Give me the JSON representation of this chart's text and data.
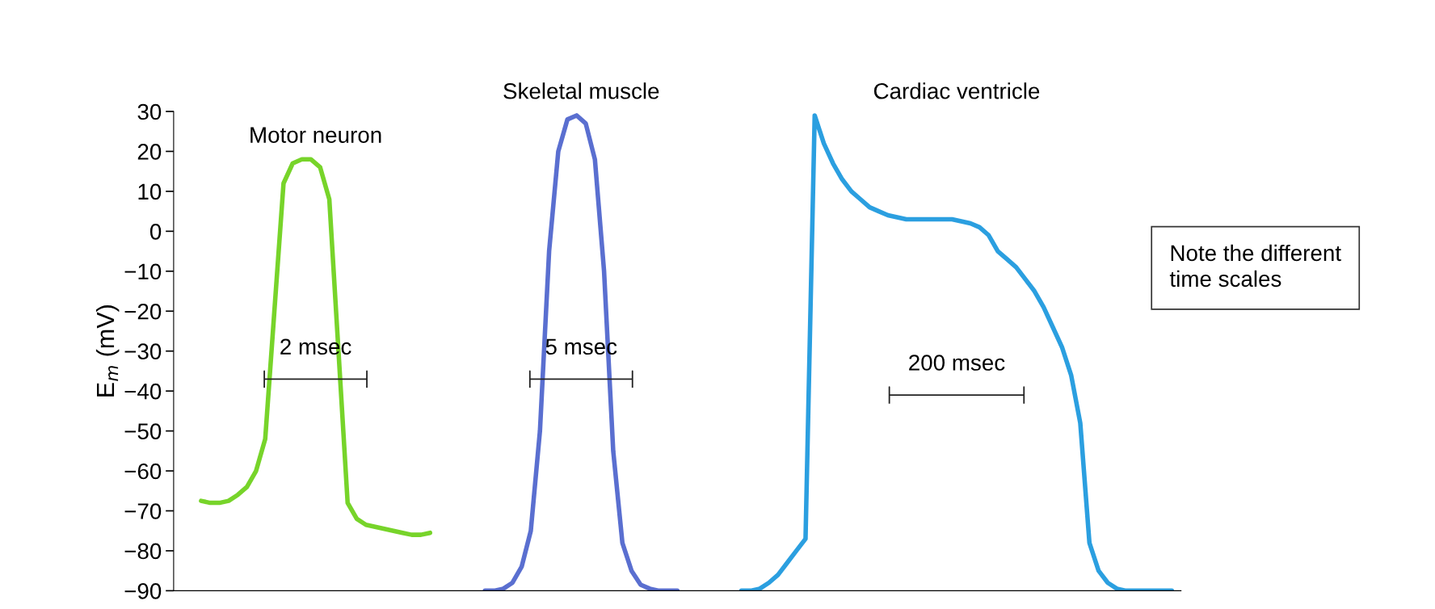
{
  "chart_data": {
    "type": "line",
    "ylabel": "E$_{m}$ (mV)",
    "ylim": [
      -90,
      30
    ],
    "yticks": [
      -90,
      -80,
      -70,
      -60,
      -50,
      -40,
      -30,
      -20,
      -10,
      0,
      10,
      20,
      30
    ],
    "tick_labels": "y",
    "grid": false,
    "categories": [
      null,
      null,
      null,
      null,
      null,
      null,
      null,
      null,
      null,
      null,
      null,
      null,
      null,
      null,
      null,
      null,
      null,
      null,
      null,
      null,
      null,
      null,
      null,
      null,
      null,
      null,
      null,
      null,
      null,
      null,
      null,
      null,
      null,
      null,
      null,
      null,
      null,
      null,
      null,
      null,
      null,
      null,
      null,
      null,
      null,
      null,
      null,
      null,
      null,
      null,
      null,
      null,
      null,
      null,
      null,
      null,
      null,
      null,
      null,
      null,
      null,
      null,
      null,
      null,
      null,
      null,
      null,
      null,
      null,
      null,
      null,
      null,
      null,
      null,
      null,
      null,
      null,
      null,
      null,
      null,
      null,
      null,
      null,
      null,
      null,
      null,
      null,
      null,
      null,
      null,
      null,
      null,
      null,
      null,
      null,
      null,
      null,
      null,
      null,
      null,
      null,
      null,
      null,
      null,
      null,
      null,
      null,
      null,
      null,
      null,
      null
    ],
    "series": [
      {
        "name": "Motor neuron",
        "color": "#77d42a",
        "values": [
          null,
          null,
          null,
          -67.5,
          -68,
          -68,
          -67.5,
          -66,
          -64,
          -60,
          -52,
          -20,
          12,
          17,
          18,
          18,
          16,
          8,
          -30,
          -68,
          -72,
          -73.5,
          -74,
          -74.5,
          -75,
          -75.5,
          -76,
          -76,
          -75.5,
          null,
          null,
          null,
          null,
          null,
          null,
          null,
          null,
          null,
          null,
          null,
          null,
          null,
          null,
          null,
          null,
          null,
          null,
          null,
          null,
          null,
          null,
          null,
          null,
          null,
          null,
          null,
          null,
          null,
          null,
          null,
          null,
          null,
          null,
          null,
          null,
          null,
          null,
          null,
          null,
          null,
          null,
          null,
          null,
          null,
          null,
          null,
          null,
          null,
          null,
          null,
          null,
          null,
          null,
          null,
          null,
          null,
          null,
          null,
          null,
          null,
          null,
          null,
          null,
          null,
          null,
          null,
          null,
          null,
          null,
          null,
          null,
          null,
          null,
          null,
          null,
          null,
          null,
          null,
          null,
          null,
          null
        ]
      },
      {
        "name": "Skeletal muscle",
        "color": "#5a6fd0",
        "values": [
          null,
          null,
          null,
          null,
          null,
          null,
          null,
          null,
          null,
          null,
          null,
          null,
          null,
          null,
          null,
          null,
          null,
          null,
          null,
          null,
          null,
          null,
          null,
          null,
          null,
          null,
          null,
          null,
          null,
          null,
          null,
          null,
          null,
          null,
          -90,
          -90,
          -89.5,
          -88,
          -84,
          -75,
          -50,
          -5,
          20,
          28,
          29,
          27,
          18,
          -10,
          -55,
          -78,
          -85,
          -88.5,
          -89.5,
          -90,
          -90,
          -90,
          null,
          null,
          null,
          null,
          null,
          null,
          null,
          null,
          null,
          null,
          null,
          null,
          null,
          null,
          null,
          null,
          null,
          null,
          null,
          null,
          null,
          null,
          null,
          null,
          null,
          null,
          null,
          null,
          null,
          null,
          null,
          null,
          null,
          null,
          null,
          null,
          null,
          null,
          null,
          null,
          null,
          null,
          null,
          null,
          null,
          null,
          null,
          null,
          null,
          null,
          null,
          null,
          null,
          null,
          null
        ]
      },
      {
        "name": "Cardiac ventricle",
        "color": "#2b9fe0",
        "values": [
          null,
          null,
          null,
          null,
          null,
          null,
          null,
          null,
          null,
          null,
          null,
          null,
          null,
          null,
          null,
          null,
          null,
          null,
          null,
          null,
          null,
          null,
          null,
          null,
          null,
          null,
          null,
          null,
          null,
          null,
          null,
          null,
          null,
          null,
          null,
          null,
          null,
          null,
          null,
          null,
          null,
          null,
          null,
          null,
          null,
          null,
          null,
          null,
          null,
          null,
          null,
          null,
          null,
          null,
          null,
          null,
          null,
          null,
          null,
          null,
          null,
          null,
          -90,
          -90,
          -89.5,
          -88,
          -86,
          -83,
          -80,
          -77,
          29,
          22,
          17,
          13,
          10,
          8,
          6,
          5,
          4,
          3.5,
          3,
          3,
          3,
          3,
          3,
          3,
          2.5,
          2,
          1,
          -1,
          -5,
          -7,
          -9,
          -12,
          -15,
          -19,
          -24,
          -29,
          -36,
          -48,
          -78,
          -85,
          -88,
          -89.5,
          -90,
          -90,
          -90,
          -90,
          -90,
          -90,
          null
        ]
      }
    ],
    "annotations": [
      "2 msec",
      "5 msec",
      "200 msec",
      "Note the different\ntime scales"
    ]
  }
}
